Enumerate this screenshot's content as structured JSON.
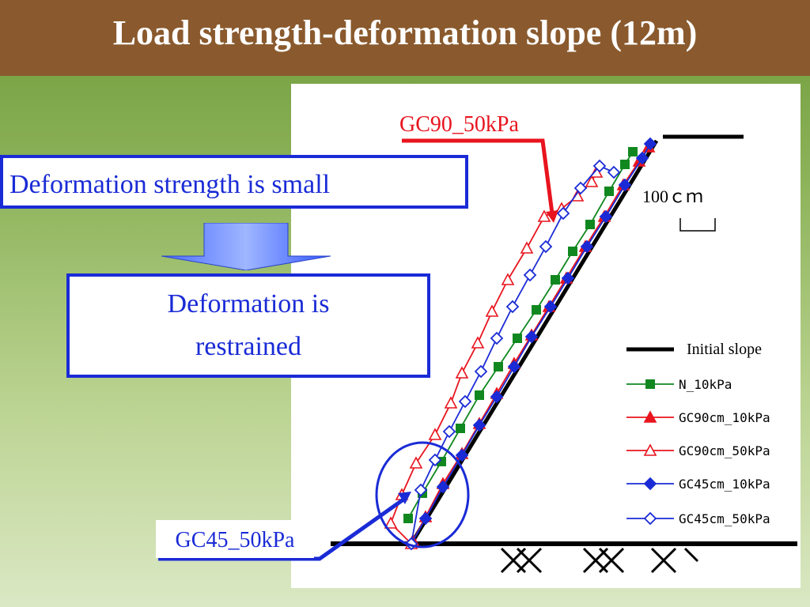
{
  "slide": {
    "title": "Load strength-deformation slope (12m)"
  },
  "callouts": {
    "deformation_small": "Deformation strength is small",
    "deformation_restrained": "Deformation is\nrestrained",
    "gc90_label": "GC90_50kPa",
    "gc45_label": "GC45_50kPa"
  },
  "colors": {
    "title_bar": "#8a5a2e",
    "accent_blue": "#1a2bd6",
    "accent_red": "#e8141e",
    "green": "#11881f"
  },
  "chart_data": {
    "type": "line",
    "scale_bar": "100ｃｍ",
    "legend": [
      {
        "name": "Initial slope",
        "color": "#000000",
        "marker": "none"
      },
      {
        "name": "N_10kPa",
        "color": "#11881f",
        "marker": "square-filled"
      },
      {
        "name": "GC90cm_10kPa",
        "color": "#e8141e",
        "marker": "triangle-filled"
      },
      {
        "name": "GC90cm_50kPa",
        "color": "#e8141e",
        "marker": "triangle-open"
      },
      {
        "name": "GC45cm_10kPa",
        "color": "#1a2bd6",
        "marker": "diamond-filled"
      },
      {
        "name": "GC45cm_50kPa",
        "color": "#1a2bd6",
        "marker": "diamond-open"
      }
    ],
    "series": [
      {
        "name": "Initial slope",
        "color": "#000000",
        "marker": "none",
        "x": [
          0,
          310
        ],
        "y": [
          0,
          510
        ]
      },
      {
        "name": "N_10kPa",
        "color": "#11881f",
        "marker": "square-filled",
        "x": [
          -4,
          14,
          38,
          62,
          86,
          110,
          134,
          158,
          182,
          204,
          226,
          250,
          270,
          280
        ],
        "y": [
          32,
          64,
          104,
          146,
          188,
          224,
          260,
          296,
          334,
          370,
          404,
          446,
          480,
          496
        ]
      },
      {
        "name": "GC90cm_10kPa",
        "color": "#e8141e",
        "marker": "triangle-filled",
        "x": [
          2,
          18,
          40,
          64,
          86,
          108,
          130,
          152,
          174,
          196,
          220,
          244,
          268,
          288,
          300
        ],
        "y": [
          4,
          34,
          76,
          114,
          152,
          190,
          228,
          264,
          300,
          336,
          376,
          414,
          454,
          484,
          502
        ]
      },
      {
        "name": "GC90cm_50kPa",
        "color": "#e8141e",
        "marker": "triangle-open",
        "x": [
          0,
          -26,
          -12,
          6,
          30,
          50,
          64,
          84,
          102,
          122,
          146,
          168,
          190,
          210,
          228,
          234
        ],
        "y": [
          0,
          26,
          62,
          102,
          138,
          178,
          216,
          254,
          294,
          334,
          374,
          414,
          424,
          440,
          458,
          470
        ]
      },
      {
        "name": "GC45cm_10kPa",
        "color": "#1a2bd6",
        "marker": "diamond-filled",
        "x": [
          0,
          18,
          40,
          64,
          86,
          108,
          130,
          152,
          176,
          198,
          222,
          246,
          270,
          292,
          302
        ],
        "y": [
          0,
          32,
          72,
          112,
          150,
          186,
          224,
          262,
          300,
          336,
          376,
          414,
          454,
          488,
          506
        ]
      },
      {
        "name": "GC45cm_50kPa",
        "color": "#1a2bd6",
        "marker": "diamond-open",
        "x": [
          0,
          12,
          30,
          48,
          68,
          88,
          108,
          128,
          150,
          170,
          192,
          214,
          238,
          256
        ],
        "y": [
          0,
          68,
          106,
          142,
          180,
          218,
          260,
          300,
          340,
          376,
          418,
          450,
          478,
          470
        ]
      }
    ]
  }
}
